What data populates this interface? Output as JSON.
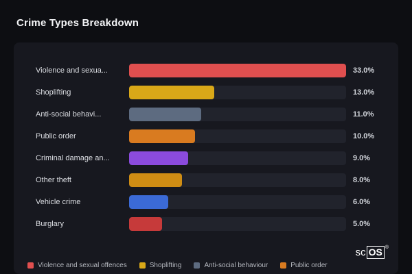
{
  "header": {
    "title": "Crime Types Breakdown"
  },
  "chart_data": {
    "type": "bar",
    "orientation": "horizontal",
    "title": "Crime Types Breakdown",
    "categories": [
      "Violence and sexua...",
      "Shoplifting",
      "Anti-social behavi...",
      "Public order",
      "Criminal damage an...",
      "Other theft",
      "Vehicle crime",
      "Burglary"
    ],
    "values": [
      33.0,
      13.0,
      11.0,
      10.0,
      9.0,
      8.0,
      6.0,
      5.0
    ],
    "value_labels": [
      "33.0%",
      "13.0%",
      "11.0%",
      "10.0%",
      "9.0%",
      "8.0%",
      "6.0%",
      "5.0%"
    ],
    "colors": [
      "#e04f4f",
      "#d9a818",
      "#5d6b80",
      "#d97b20",
      "#8b4bdd",
      "#cf8d14",
      "#3b6ad6",
      "#c63a3a"
    ],
    "scale_max": 33,
    "xlim": [
      0,
      33
    ],
    "grid": false,
    "legend_position": "bottom"
  },
  "legend": {
    "items": [
      {
        "label": "Violence and sexual offences",
        "color": "#e04f4f"
      },
      {
        "label": "Shoplifting",
        "color": "#d9a818"
      },
      {
        "label": "Anti-social behaviour",
        "color": "#5d6b80"
      },
      {
        "label": "Public order",
        "color": "#d97b20"
      }
    ]
  },
  "logo": {
    "prefix": "sc",
    "box": "OS",
    "reg": "®"
  }
}
